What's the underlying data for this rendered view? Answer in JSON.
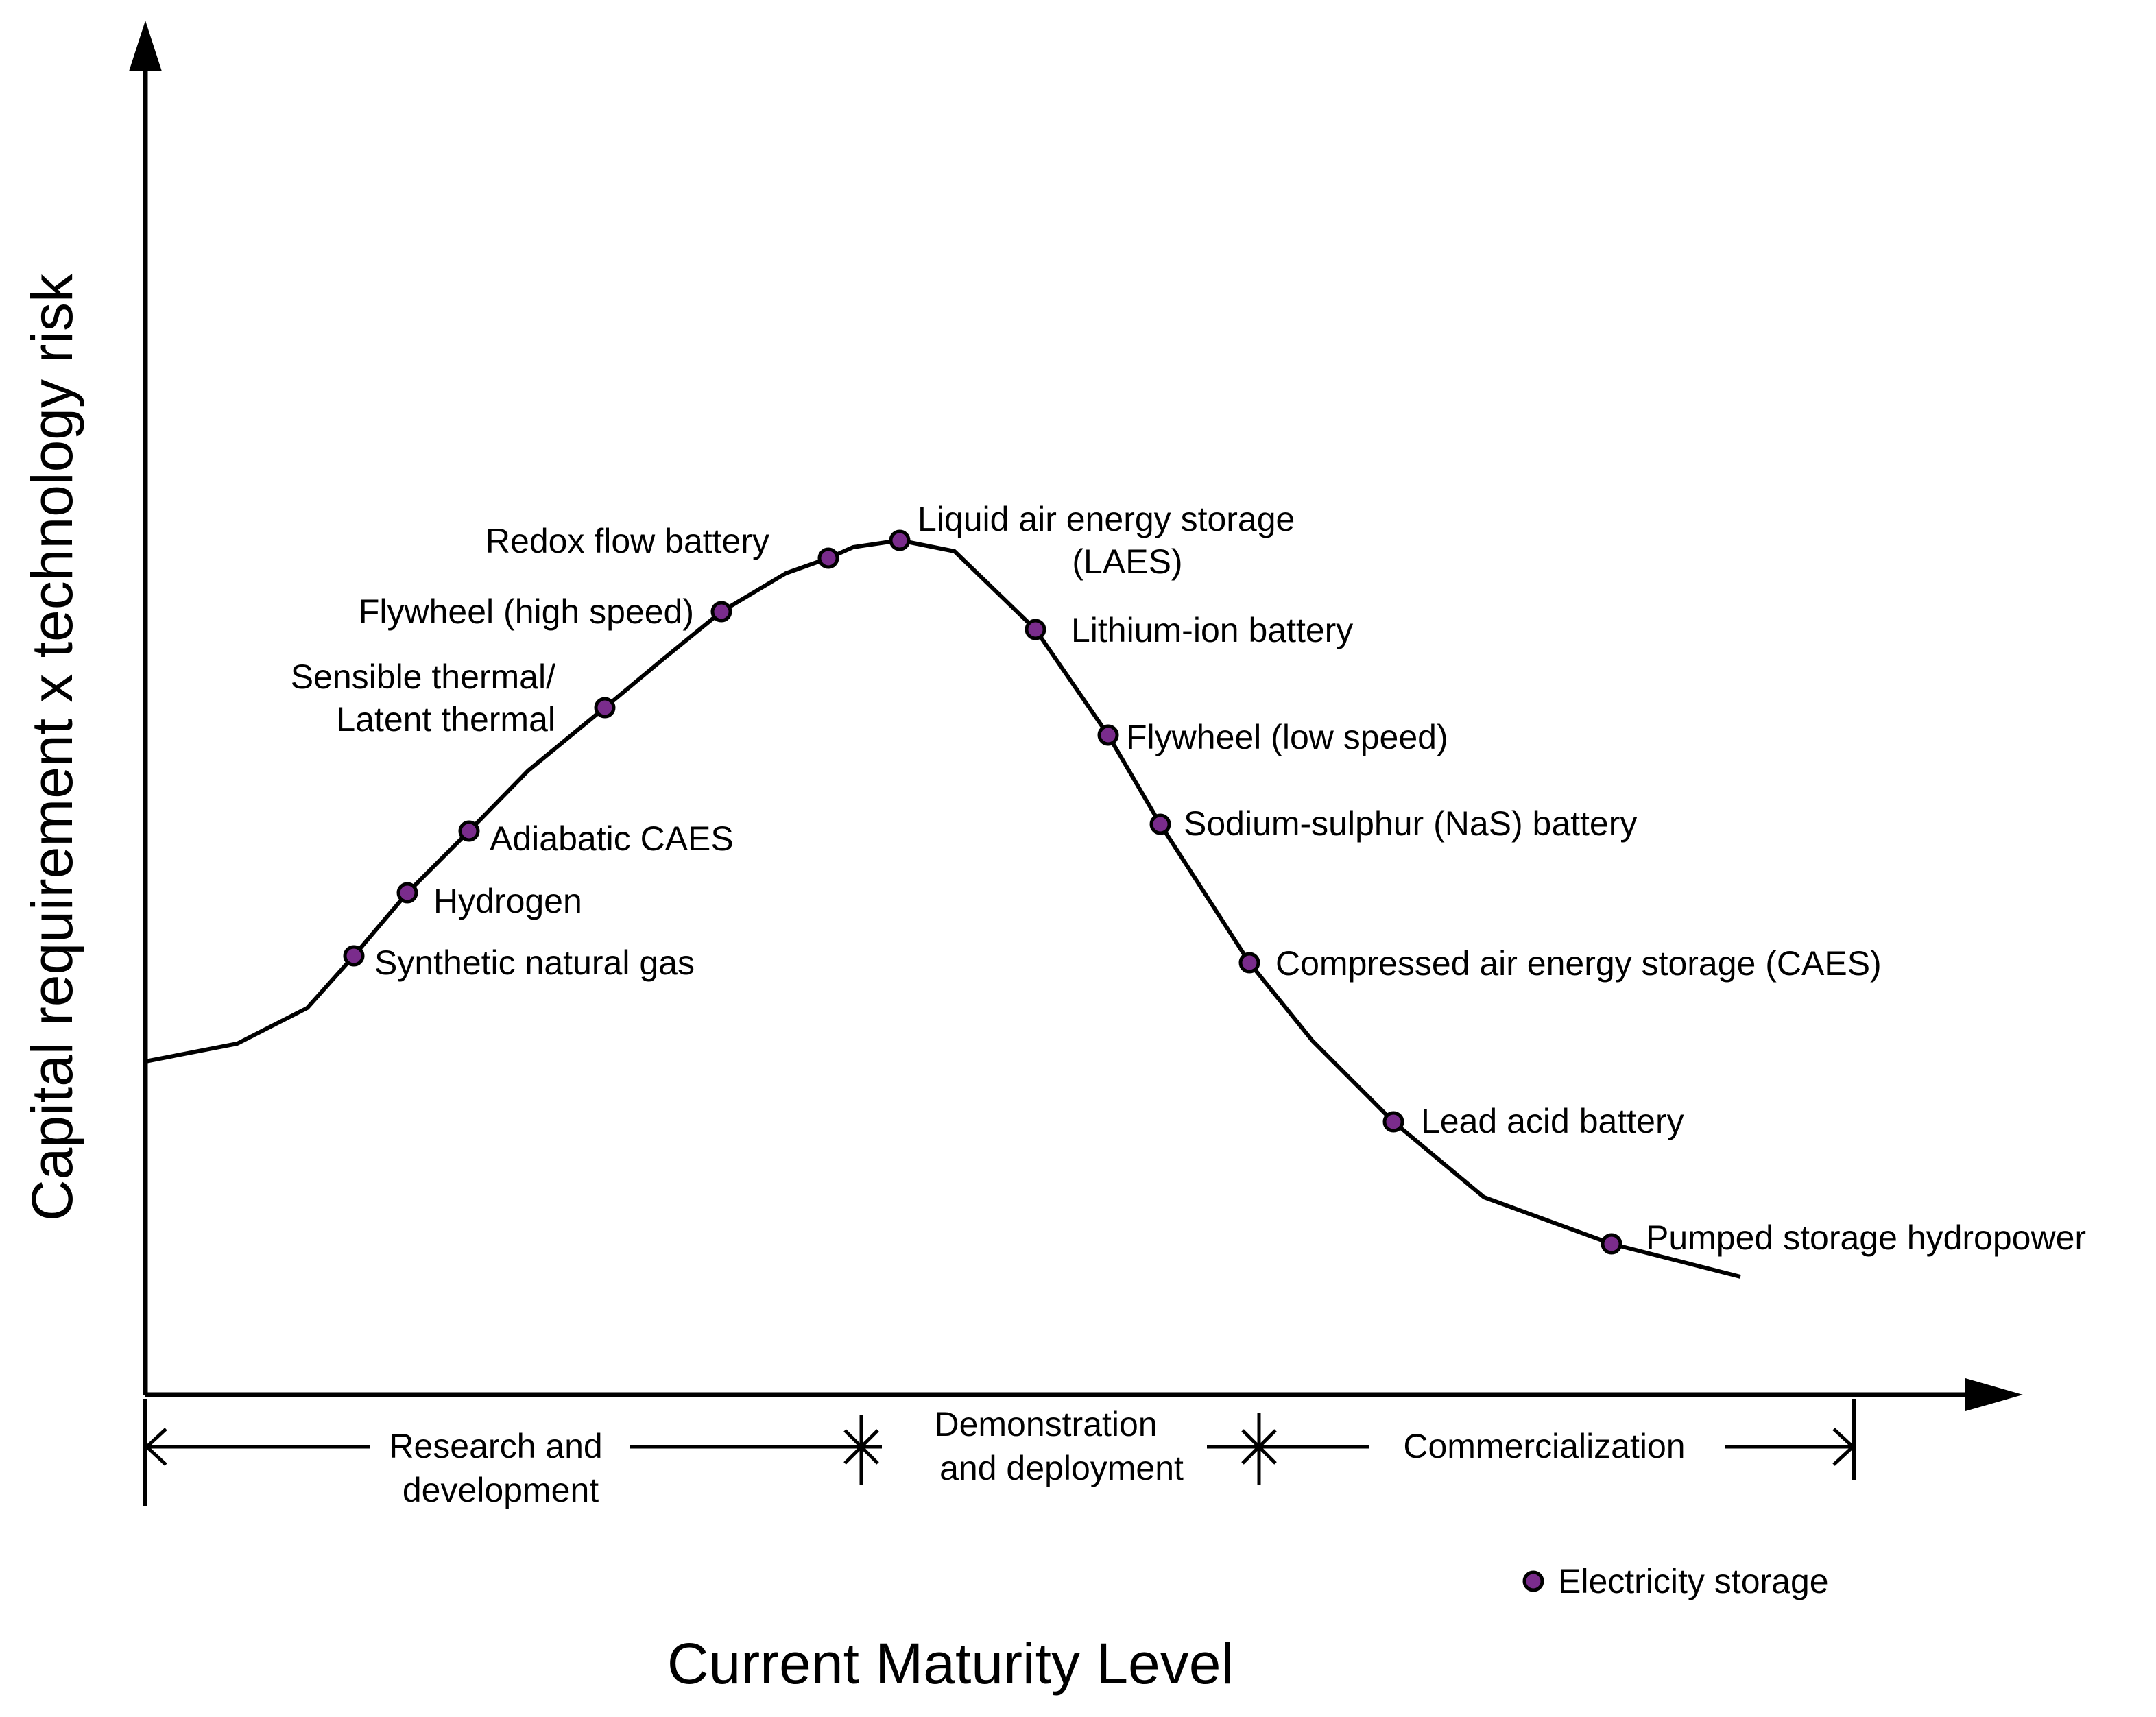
{
  "chart_data": {
    "type": "line",
    "title": "",
    "xlabel": "Current Maturity Level",
    "ylabel": "Capital requirement x technology risk",
    "grid": false,
    "legend_position": "bottom-right",
    "series": [
      {
        "name": "Electricity storage",
        "color": "#7a2c8c",
        "points": [
          {
            "label": "Synthetic natural gas",
            "text_lines": [
              "Synthetic natural gas"
            ]
          },
          {
            "label": "Hydrogen",
            "text_lines": [
              "Hydrogen"
            ]
          },
          {
            "label": "Adiabatic CAES",
            "text_lines": [
              "Adiabatic CAES"
            ]
          },
          {
            "label": "Sensible thermal/ Latent thermal",
            "text_lines": [
              "Sensible thermal/",
              "Latent thermal"
            ]
          },
          {
            "label": "Flywheel (high speed)",
            "text_lines": [
              "Flywheel (high speed)"
            ]
          },
          {
            "label": "Redox flow battery",
            "text_lines": [
              "Redox flow battery"
            ]
          },
          {
            "label": "Liquid air energy storage (LAES)",
            "text_lines": [
              "Liquid air energy storage",
              "(LAES)"
            ]
          },
          {
            "label": "Lithium-ion battery",
            "text_lines": [
              "Lithium-ion battery"
            ]
          },
          {
            "label": "Flywheel (low speed)",
            "text_lines": [
              "Flywheel (low speed)"
            ]
          },
          {
            "label": "Sodium-sulphur (NaS) battery",
            "text_lines": [
              "Sodium-sulphur (NaS) battery"
            ]
          },
          {
            "label": "Compressed air energy storage (CAES)",
            "text_lines": [
              "Compressed air energy storage (CAES)"
            ]
          },
          {
            "label": "Lead acid battery",
            "text_lines": [
              "Lead acid battery"
            ]
          },
          {
            "label": "Pumped storage hydropower",
            "text_lines": [
              "Pumped storage hydropower"
            ]
          }
        ]
      }
    ],
    "stages": [
      {
        "name": "Research and development",
        "text_lines": [
          "Research and",
          "development"
        ]
      },
      {
        "name": "Demonstration and deployment",
        "text_lines": [
          "Demonstration",
          "and deployment"
        ]
      },
      {
        "name": "Commercialization",
        "text_lines": [
          "Commercialization"
        ]
      }
    ],
    "legend": {
      "label": "Electricity storage"
    },
    "colors": {
      "line": "#000000",
      "marker_fill": "#7a2c8c",
      "marker_stroke": "#000000"
    }
  }
}
